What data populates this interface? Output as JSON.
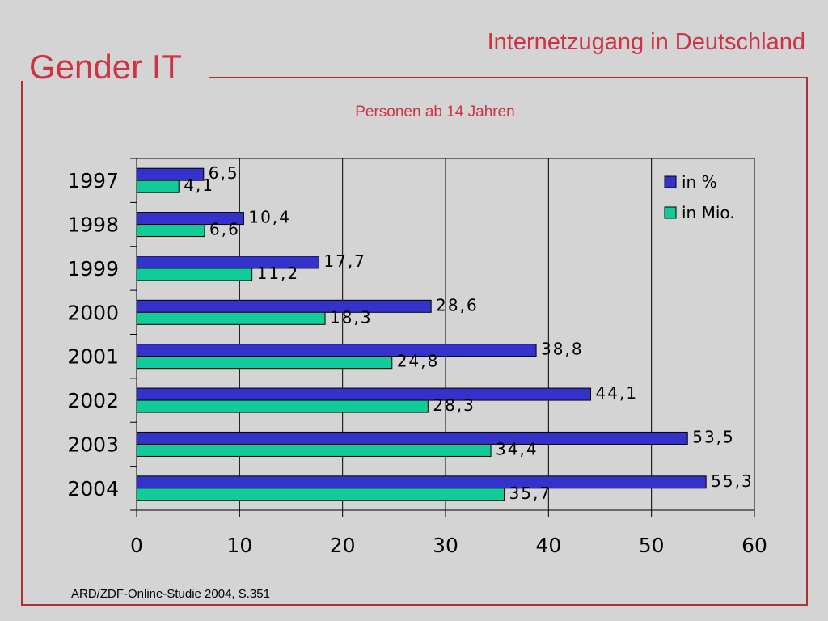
{
  "header": {
    "brand": "Gender IT",
    "title": "Internetzugang in Deutschland",
    "subtitle": "Personen ab 14 Jahren"
  },
  "footer": {
    "source": "ARD/ZDF-Online-Studie 2004, S.351"
  },
  "colors": {
    "accent": "#cc3344",
    "frame": "#b03030"
  },
  "chart_data": {
    "type": "bar",
    "orientation": "horizontal",
    "categories": [
      "1997",
      "1998",
      "1999",
      "2000",
      "2001",
      "2002",
      "2003",
      "2004"
    ],
    "series": [
      {
        "name": "in %",
        "color": "#3333cc",
        "values": [
          6.5,
          10.4,
          17.7,
          28.6,
          38.8,
          44.1,
          53.5,
          55.3
        ],
        "labels": [
          "6,5",
          "10,4",
          "17,7",
          "28,6",
          "38,8",
          "44,1",
          "53,5",
          "55,3"
        ]
      },
      {
        "name": "in Mio.",
        "color": "#11cc99",
        "values": [
          4.1,
          6.6,
          11.2,
          18.3,
          24.8,
          28.3,
          34.4,
          35.7
        ],
        "labels": [
          "4,1",
          "6,6",
          "11,2",
          "18,3",
          "24,8",
          "28,3",
          "34,4",
          "35,7"
        ]
      }
    ],
    "xlim": [
      0,
      60
    ],
    "xticks": [
      0,
      10,
      20,
      30,
      40,
      50,
      60
    ],
    "xtick_labels": [
      "0",
      "10",
      "20",
      "30",
      "40",
      "50",
      "60"
    ],
    "grid": true,
    "legend": "top-right"
  }
}
